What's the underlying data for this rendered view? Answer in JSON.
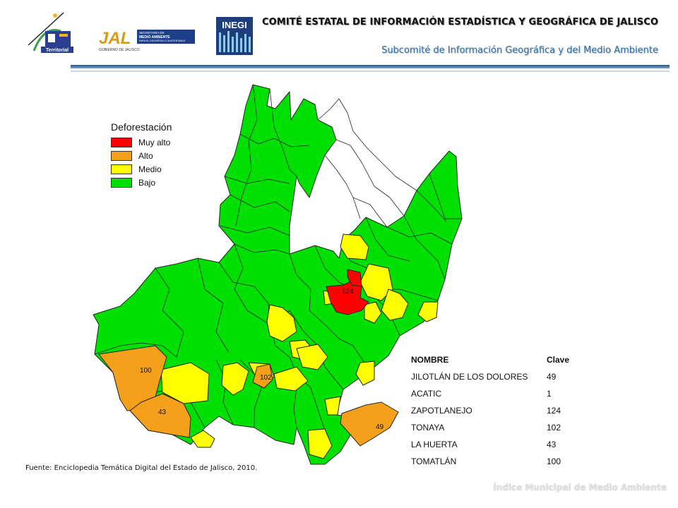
{
  "header": {
    "title": "COMITÉ ESTATAL DE INFORMACIÓN ESTADÍSTICA Y GEOGRÁFICA DE JALISCO",
    "subtitle": "Subcomité de Información Geográfica y del Medio Ambiente"
  },
  "logos": {
    "logo1_text": "Territorial",
    "logo2_text": "JAL",
    "logo2_sub1": "SECRETARÍA DE",
    "logo2_sub2": "MEDIO AMBIENTE",
    "logo2_sub3": "PARA EL DESARROLLO SUSTENTABLE",
    "logo2_sub4": "GOBIERNO DE JALISCO",
    "logo3_text": "INEGI"
  },
  "legend": {
    "title": "Deforestación",
    "items": [
      {
        "label": "Muy alto",
        "color": "#ff0000"
      },
      {
        "label": "Alto",
        "color": "#f5a01a"
      },
      {
        "label": "Medio",
        "color": "#ffff00"
      },
      {
        "label": "Bajo",
        "color": "#00e000"
      }
    ]
  },
  "map_labels": {
    "zapotlanejo": "124",
    "tonaya": "102",
    "tomatlan": "100",
    "la_huerta": "43",
    "jilotlan": "49"
  },
  "table": {
    "headers": [
      "NOMBRE",
      "Clave"
    ],
    "rows": [
      [
        "JILOTLÁN DE LOS DOLORES",
        "49"
      ],
      [
        "ACATIC",
        "1"
      ],
      [
        "ZAPOTLANEJO",
        "124"
      ],
      [
        "TONAYA",
        "102"
      ],
      [
        "LA HUERTA",
        "43"
      ],
      [
        "TOMATLÁN",
        "100"
      ]
    ]
  },
  "source": "Fuente: Enciclopedia Temática Digital del Estado de Jalisco, 2010.",
  "footer": "Índice Municipal de Medio Ambiente"
}
